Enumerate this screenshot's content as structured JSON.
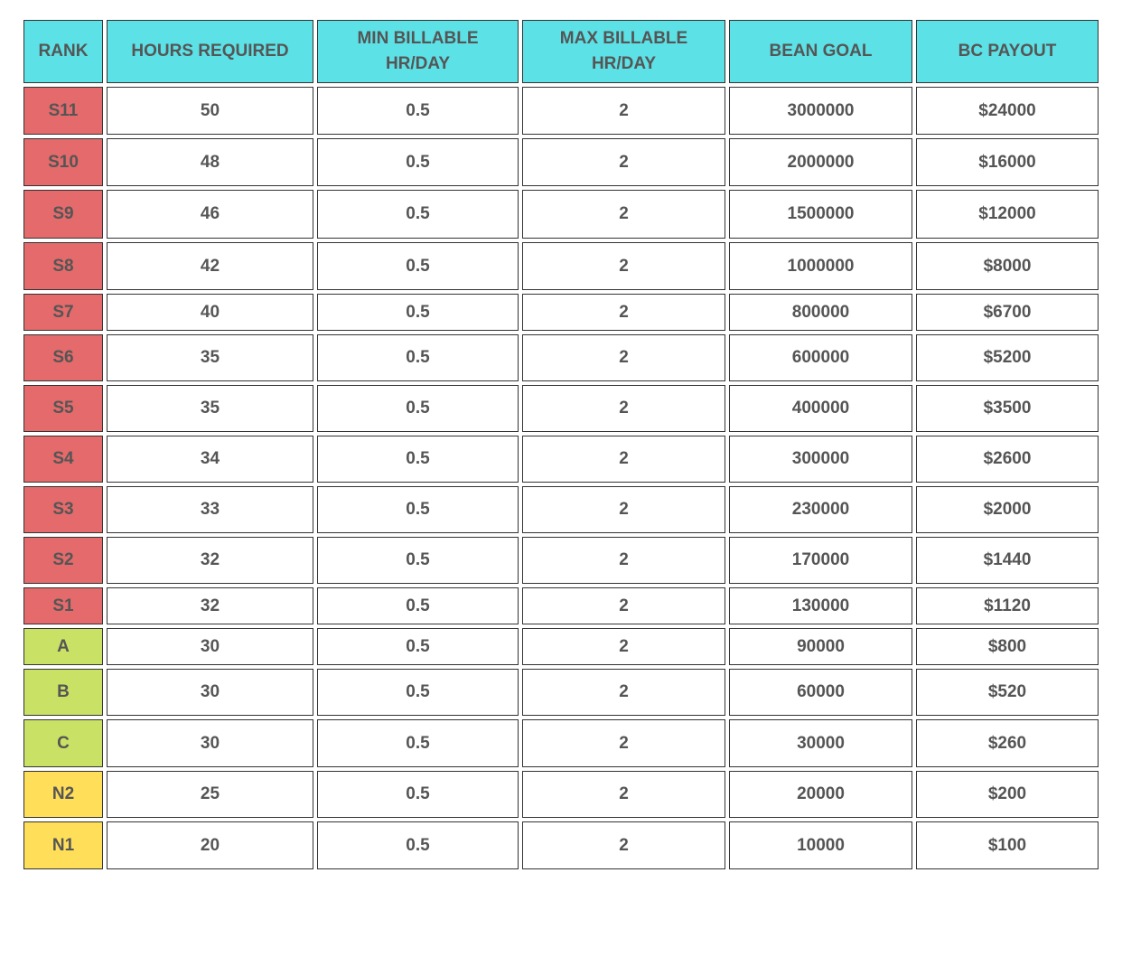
{
  "table": {
    "headers": [
      "RANK",
      "HOURS REQUIRED",
      "MIN BILLABLE HR/DAY",
      "MAX BILLABLE HR/DAY",
      "BEAN GOAL",
      "BC PAYOUT"
    ],
    "rows": [
      [
        "S11",
        "50",
        "0.5",
        "2",
        "3000000",
        "$24000"
      ],
      [
        "S10",
        "48",
        "0.5",
        "2",
        "2000000",
        "$16000"
      ],
      [
        "S9",
        "46",
        "0.5",
        "2",
        "1500000",
        "$12000"
      ],
      [
        "S8",
        "42",
        "0.5",
        "2",
        "1000000",
        "$8000"
      ],
      [
        "S7",
        "40",
        "0.5",
        "2",
        "800000",
        "$6700"
      ],
      [
        "S6",
        "35",
        "0.5",
        "2",
        "600000",
        "$5200"
      ],
      [
        "S5",
        "35",
        "0.5",
        "2",
        "400000",
        "$3500"
      ],
      [
        "S4",
        "34",
        "0.5",
        "2",
        "300000",
        "$2600"
      ],
      [
        "S3",
        "33",
        "0.5",
        "2",
        "230000",
        "$2000"
      ],
      [
        "S2",
        "32",
        "0.5",
        "2",
        "170000",
        "$1440"
      ],
      [
        "S1",
        "32",
        "0.5",
        "2",
        "130000",
        "$1120"
      ],
      [
        "A",
        "30",
        "0.5",
        "2",
        "90000",
        "$800"
      ],
      [
        "B",
        "30",
        "0.5",
        "2",
        "60000",
        "$520"
      ],
      [
        "C",
        "30",
        "0.5",
        "2",
        "30000",
        "$260"
      ],
      [
        "N2",
        "25",
        "0.5",
        "2",
        "20000",
        "$200"
      ],
      [
        "N1",
        "20",
        "0.5",
        "2",
        "10000",
        "$100"
      ]
    ]
  }
}
